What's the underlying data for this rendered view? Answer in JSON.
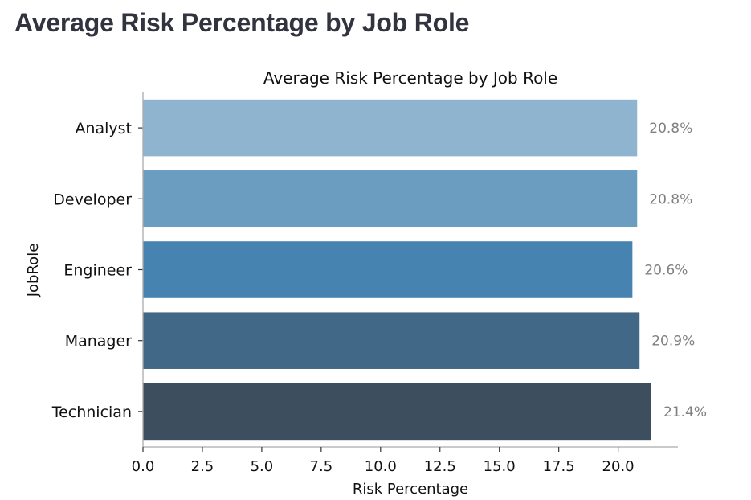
{
  "page": {
    "heading": "Average Risk Percentage by Job Role"
  },
  "chart_data": {
    "type": "bar",
    "orientation": "horizontal",
    "title": "Average Risk Percentage by Job Role",
    "xlabel": "Risk Percentage",
    "ylabel": "JobRole",
    "categories": [
      "Analyst",
      "Developer",
      "Engineer",
      "Manager",
      "Technician"
    ],
    "values": [
      20.8,
      20.8,
      20.6,
      20.9,
      21.4
    ],
    "value_labels": [
      "20.8%",
      "20.8%",
      "20.6%",
      "20.9%",
      "21.4%"
    ],
    "colors": [
      "#8fb4d0",
      "#6a9dc0",
      "#4783b0",
      "#416887",
      "#3d4f5e"
    ],
    "xlim": [
      0,
      22.5
    ],
    "xticks": [
      "0.0",
      "2.5",
      "5.0",
      "7.5",
      "10.0",
      "12.5",
      "15.0",
      "17.5",
      "20.0"
    ],
    "grid": false
  }
}
